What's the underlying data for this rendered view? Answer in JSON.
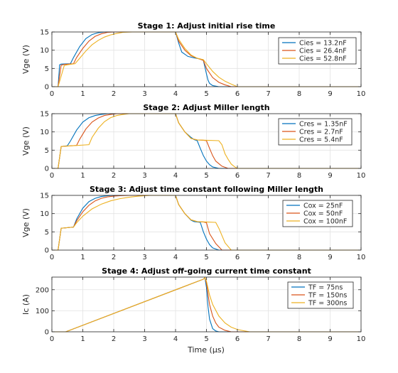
{
  "figure": {
    "xlabel": "Time (μs)"
  },
  "chart_data": [
    {
      "type": "line",
      "title": "Stage 1: Adjust initial rise time",
      "xlabel": "",
      "ylabel": "Vge (V)",
      "xlim": [
        0,
        10
      ],
      "ylim": [
        0,
        15
      ],
      "xticks": [
        "0",
        "1",
        "2",
        "3",
        "4",
        "5",
        "6",
        "7",
        "8",
        "9",
        "10"
      ],
      "yticks": [
        "0",
        "5",
        "10",
        "15"
      ],
      "grid": true,
      "legend_position": "top-right",
      "series": [
        {
          "name": "Cies = 13.2nF",
          "color": "#0072BD",
          "x": [
            0,
            0.2,
            0.25,
            0.3,
            0.6,
            0.7,
            0.9,
            1.1,
            1.3,
            1.5,
            1.7,
            2.0,
            4.0,
            4.1,
            4.2,
            4.4,
            4.6,
            4.8,
            4.9,
            5.0,
            5.05,
            5.1,
            5.2,
            5.4,
            10
          ],
          "y": [
            0,
            0,
            6.0,
            6.2,
            6.3,
            8.0,
            11.0,
            13.2,
            14.3,
            14.8,
            15,
            15,
            15,
            12.0,
            9.5,
            8.3,
            7.9,
            7.6,
            7.2,
            3.5,
            1.8,
            0.9,
            0.3,
            0,
            0
          ]
        },
        {
          "name": "Cies = 26.4nF",
          "color": "#D95319",
          "x": [
            0,
            0.2,
            0.3,
            0.4,
            0.7,
            0.8,
            1.0,
            1.2,
            1.4,
            1.6,
            1.8,
            2.0,
            2.2,
            4.0,
            4.1,
            4.3,
            4.5,
            4.7,
            4.9,
            5.0,
            5.2,
            5.4,
            5.6,
            5.8,
            10
          ],
          "y": [
            0,
            0,
            5.9,
            6.1,
            6.3,
            8.0,
            10.5,
            12.5,
            13.8,
            14.5,
            14.9,
            15,
            15,
            15,
            12.5,
            10.0,
            8.5,
            7.8,
            7.2,
            5.0,
            2.5,
            1.2,
            0.5,
            0,
            0
          ]
        },
        {
          "name": "Cies = 52.8nF",
          "color": "#EDB120",
          "x": [
            0,
            0.2,
            0.4,
            0.5,
            0.75,
            0.9,
            1.1,
            1.3,
            1.5,
            1.7,
            1.9,
            2.1,
            2.3,
            2.6,
            4.0,
            4.1,
            4.3,
            4.5,
            4.7,
            4.9,
            5.0,
            5.2,
            5.4,
            5.6,
            5.8,
            6.0,
            10
          ],
          "y": [
            0,
            0,
            5.8,
            6.0,
            6.3,
            7.8,
            9.8,
            11.5,
            12.7,
            13.6,
            14.2,
            14.6,
            14.9,
            15,
            15,
            13.0,
            10.5,
            8.7,
            7.8,
            7.4,
            6.3,
            4.2,
            2.6,
            1.5,
            0.7,
            0,
            0
          ]
        }
      ]
    },
    {
      "type": "line",
      "title": "Stage 2: Adjust Miller length",
      "xlabel": "",
      "ylabel": "Vge (V)",
      "xlim": [
        0,
        10
      ],
      "ylim": [
        0,
        15
      ],
      "xticks": [
        "0",
        "1",
        "2",
        "3",
        "4",
        "5",
        "6",
        "7",
        "8",
        "9",
        "10"
      ],
      "yticks": [
        "0",
        "5",
        "10",
        "15"
      ],
      "grid": true,
      "legend_position": "top-right",
      "series": [
        {
          "name": "Cres = 1.35nF",
          "color": "#0072BD",
          "x": [
            0,
            0.2,
            0.3,
            0.5,
            0.6,
            0.8,
            1.0,
            1.2,
            1.4,
            1.6,
            1.8,
            2.0,
            4.0,
            4.1,
            4.3,
            4.5,
            4.6,
            4.7,
            4.8,
            4.9,
            5.0,
            5.1,
            5.2,
            5.4,
            10
          ],
          "y": [
            0,
            0,
            6.0,
            6.2,
            7.5,
            10.5,
            12.7,
            13.9,
            14.5,
            14.8,
            15,
            15,
            15,
            12.5,
            10.0,
            8.5,
            7.9,
            7.6,
            5.5,
            3.5,
            2.0,
            1.0,
            0.4,
            0,
            0
          ]
        },
        {
          "name": "Cres = 2.7nF",
          "color": "#D95319",
          "x": [
            0,
            0.2,
            0.3,
            0.8,
            0.9,
            1.1,
            1.3,
            1.5,
            1.7,
            1.9,
            2.1,
            2.3,
            4.0,
            4.1,
            4.3,
            4.5,
            4.7,
            4.9,
            5.0,
            5.1,
            5.2,
            5.3,
            5.5,
            5.7,
            10
          ],
          "y": [
            0,
            0,
            6.0,
            6.3,
            8.0,
            10.8,
            12.7,
            13.8,
            14.5,
            14.8,
            15,
            15,
            15,
            12.5,
            10.0,
            8.2,
            7.8,
            7.7,
            7.6,
            5.5,
            3.5,
            2.0,
            0.6,
            0,
            0
          ]
        },
        {
          "name": "Cres = 5.4nF",
          "color": "#EDB120",
          "x": [
            0,
            0.2,
            0.3,
            1.2,
            1.3,
            1.5,
            1.7,
            1.9,
            2.1,
            2.3,
            2.5,
            2.7,
            4.0,
            4.1,
            4.3,
            4.5,
            4.7,
            5.0,
            5.4,
            5.5,
            5.6,
            5.7,
            5.8,
            5.9,
            6.0,
            10
          ],
          "y": [
            0,
            0,
            6.0,
            6.5,
            8.5,
            11.0,
            12.8,
            13.9,
            14.5,
            14.8,
            15,
            15,
            15,
            12.5,
            10.0,
            8.2,
            7.8,
            7.7,
            7.6,
            6.5,
            4.0,
            2.5,
            1.2,
            0.5,
            0,
            0
          ]
        }
      ]
    },
    {
      "type": "line",
      "title": "Stage 3: Adjust time constant following Miller length",
      "xlabel": "",
      "ylabel": "Vge (V)",
      "xlim": [
        0,
        10
      ],
      "ylim": [
        0,
        15
      ],
      "xticks": [
        "0",
        "1",
        "2",
        "3",
        "4",
        "5",
        "6",
        "7",
        "8",
        "9",
        "10"
      ],
      "yticks": [
        "0",
        "5",
        "10",
        "15"
      ],
      "grid": true,
      "legend_position": "top-right",
      "series": [
        {
          "name": "Cox = 25nF",
          "color": "#0072BD",
          "x": [
            0,
            0.2,
            0.3,
            0.7,
            0.8,
            1.0,
            1.2,
            1.4,
            1.6,
            1.8,
            2.0,
            2.2,
            4.0,
            4.1,
            4.3,
            4.5,
            4.6,
            4.8,
            4.9,
            5.0,
            5.1,
            5.2,
            5.4,
            10
          ],
          "y": [
            0,
            0,
            6.0,
            6.3,
            8.5,
            11.5,
            13.3,
            14.2,
            14.7,
            14.9,
            15,
            15,
            15,
            12.5,
            10.0,
            8.2,
            7.8,
            7.6,
            5.0,
            3.0,
            1.5,
            0.6,
            0,
            0
          ]
        },
        {
          "name": "Cox = 50nF",
          "color": "#D95319",
          "x": [
            0,
            0.2,
            0.3,
            0.7,
            0.8,
            1.0,
            1.2,
            1.4,
            1.6,
            1.8,
            2.0,
            2.2,
            2.5,
            4.0,
            4.1,
            4.3,
            4.5,
            4.7,
            4.9,
            5.0,
            5.1,
            5.3,
            5.5,
            10
          ],
          "y": [
            0,
            0,
            6.0,
            6.3,
            8.0,
            10.5,
            12.3,
            13.5,
            14.2,
            14.6,
            14.8,
            14.9,
            15,
            15,
            12.5,
            10.0,
            8.3,
            7.8,
            7.7,
            7.5,
            4.5,
            1.8,
            0,
            0
          ]
        },
        {
          "name": "Cox = 100nF",
          "color": "#EDB120",
          "x": [
            0,
            0.2,
            0.3,
            0.7,
            0.8,
            1.0,
            1.3,
            1.6,
            1.9,
            2.2,
            2.5,
            2.8,
            3.2,
            4.0,
            4.1,
            4.3,
            4.5,
            4.7,
            5.0,
            5.3,
            5.4,
            5.5,
            5.6,
            5.8,
            10
          ],
          "y": [
            0,
            0,
            6.0,
            6.3,
            7.5,
            9.3,
            11.3,
            12.6,
            13.5,
            14.1,
            14.5,
            14.8,
            15,
            15,
            12.5,
            10.0,
            8.3,
            7.8,
            7.7,
            7.6,
            6.0,
            4.0,
            2.0,
            0,
            0
          ]
        }
      ]
    },
    {
      "type": "line",
      "title": "Stage 4: Adjust off-going current time constant",
      "xlabel": "Time (μs)",
      "ylabel": "Ic (A)",
      "xlim": [
        0,
        10
      ],
      "ylim": [
        0,
        260
      ],
      "xticks": [
        "0",
        "1",
        "2",
        "3",
        "4",
        "5",
        "6",
        "7",
        "8",
        "9",
        "10"
      ],
      "yticks": [
        "0",
        "100",
        "200"
      ],
      "grid": true,
      "legend_position": "top-right",
      "series": [
        {
          "name": "TF = 75ns",
          "color": "#0072BD",
          "x": [
            0,
            0.45,
            4.9,
            4.95,
            5.0,
            5.05,
            5.1,
            5.2,
            5.3,
            5.4,
            10
          ],
          "y": [
            0,
            0,
            250,
            258,
            210,
            120,
            60,
            15,
            4,
            0,
            0
          ]
        },
        {
          "name": "TF = 150ns",
          "color": "#D95319",
          "x": [
            0,
            0.45,
            4.9,
            4.95,
            5.0,
            5.1,
            5.2,
            5.3,
            5.4,
            5.6,
            5.8,
            10
          ],
          "y": [
            0,
            0,
            250,
            258,
            230,
            130,
            75,
            42,
            22,
            7,
            0,
            0
          ]
        },
        {
          "name": "TF = 300ns",
          "color": "#EDB120",
          "x": [
            0,
            0.45,
            4.9,
            4.95,
            5.0,
            5.1,
            5.2,
            5.4,
            5.6,
            5.8,
            6.0,
            6.2,
            6.4,
            10
          ],
          "y": [
            0,
            0,
            250,
            258,
            240,
            175,
            130,
            75,
            42,
            22,
            11,
            5,
            0,
            0
          ]
        }
      ]
    }
  ]
}
